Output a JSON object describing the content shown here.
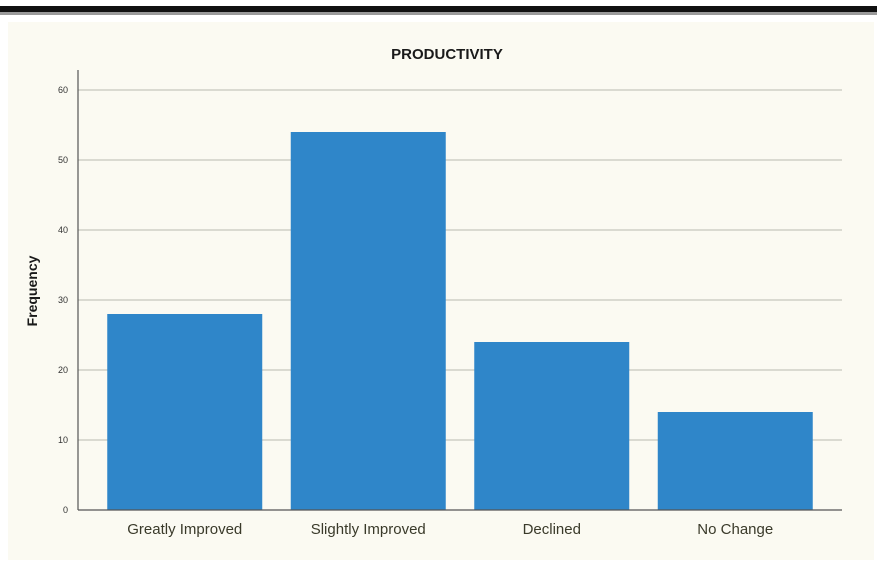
{
  "chart_data": {
    "type": "bar",
    "title": "PRODUCTIVITY",
    "xlabel": "",
    "ylabel": "Frequency",
    "categories": [
      "Greatly Improved",
      "Slightly Improved",
      "Declined",
      "No Change"
    ],
    "values": [
      28,
      54,
      24,
      14
    ],
    "ylim": [
      0,
      60
    ],
    "yticks": [
      "0",
      "10",
      "20",
      "30",
      "40",
      "50",
      "60"
    ],
    "grid": true,
    "bar_color": "#2f86c9",
    "legend": "none"
  }
}
